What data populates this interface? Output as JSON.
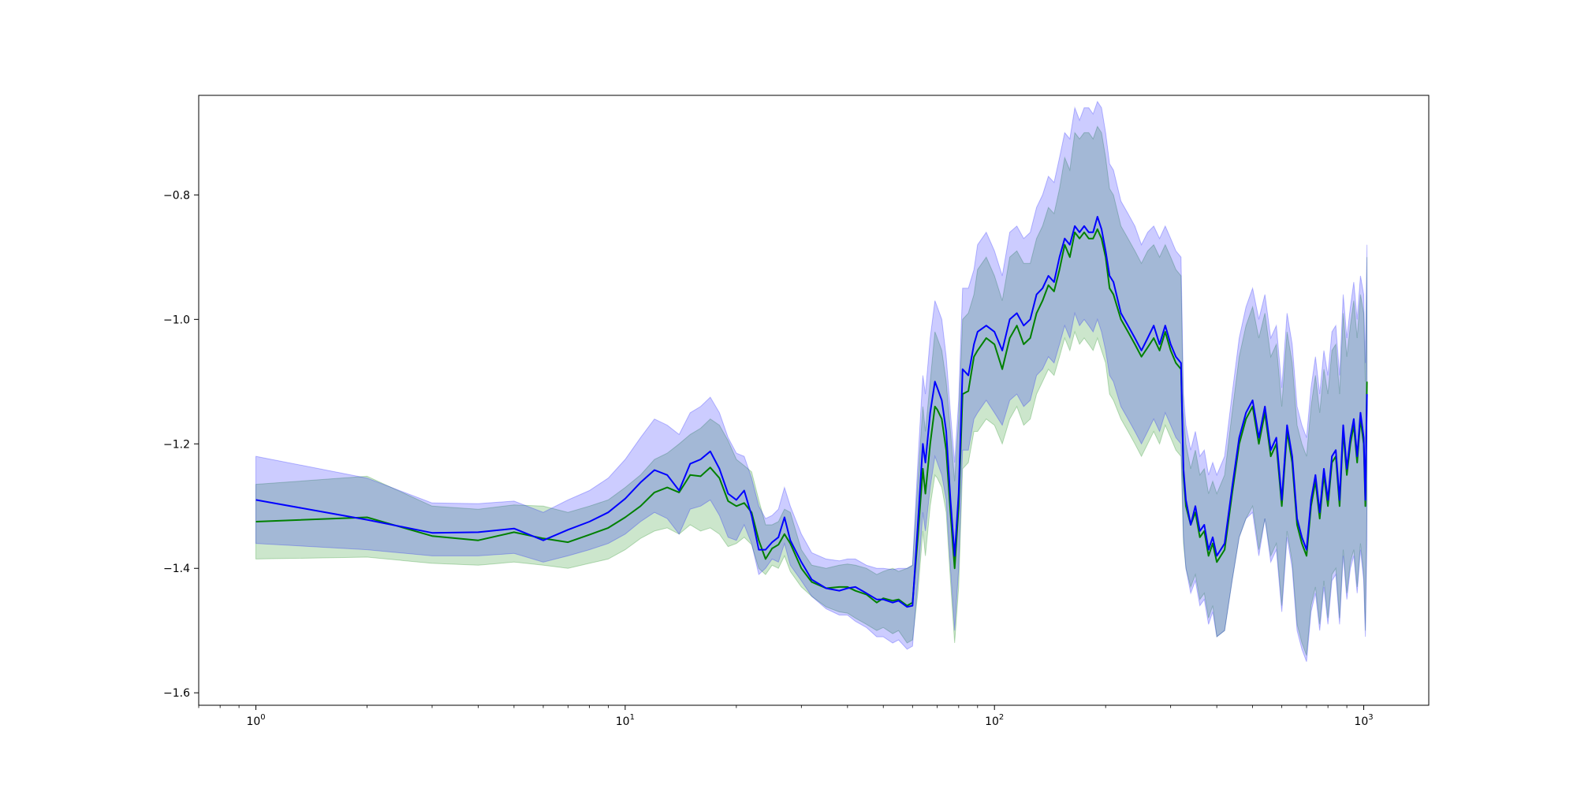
{
  "chart_data": {
    "type": "line",
    "title": "",
    "xlabel": "",
    "ylabel": "",
    "x_scale": "log",
    "xlim": [
      0.7,
      1500
    ],
    "ylim": [
      -1.62,
      -0.64
    ],
    "grid": false,
    "legend": "none",
    "x_ticks": [
      {
        "value": 1,
        "base": "10",
        "exp": "0"
      },
      {
        "value": 10,
        "base": "10",
        "exp": "1"
      },
      {
        "value": 100,
        "base": "10",
        "exp": "2"
      },
      {
        "value": 1000,
        "base": "10",
        "exp": "3"
      }
    ],
    "y_ticks": [
      {
        "value": -1.6,
        "label": "−1.6"
      },
      {
        "value": -1.4,
        "label": "−1.4"
      },
      {
        "value": -1.2,
        "label": "−1.2"
      },
      {
        "value": -1.0,
        "label": "−1.0"
      },
      {
        "value": -0.8,
        "label": "−0.8"
      }
    ],
    "series": [
      {
        "color": "#008000",
        "band_color": "#008000",
        "x": [
          1,
          2,
          3,
          4,
          5,
          6,
          7,
          8,
          9,
          10,
          11,
          12,
          13,
          14,
          15,
          16,
          17,
          18,
          19,
          20,
          21,
          22,
          23,
          24,
          25,
          26,
          27,
          28,
          30,
          32,
          35,
          38,
          40,
          42,
          45,
          48,
          50,
          53,
          55,
          58,
          60,
          62,
          64,
          65,
          67,
          69,
          70,
          72,
          74,
          76,
          78,
          80,
          82,
          85,
          88,
          90,
          95,
          100,
          105,
          110,
          115,
          120,
          125,
          130,
          135,
          140,
          145,
          150,
          155,
          160,
          165,
          170,
          175,
          180,
          185,
          190,
          195,
          200,
          205,
          210,
          220,
          230,
          240,
          250,
          260,
          270,
          280,
          290,
          300,
          310,
          320,
          325,
          330,
          340,
          350,
          360,
          370,
          380,
          390,
          400,
          420,
          440,
          460,
          480,
          500,
          520,
          540,
          560,
          580,
          600,
          620,
          640,
          660,
          680,
          700,
          720,
          740,
          760,
          780,
          800,
          820,
          840,
          860,
          880,
          900,
          920,
          940,
          960,
          980,
          1000,
          1010,
          1020
        ],
        "y": [
          -1.325,
          -1.318,
          -1.348,
          -1.355,
          -1.342,
          -1.352,
          -1.358,
          -1.346,
          -1.335,
          -1.318,
          -1.3,
          -1.278,
          -1.27,
          -1.278,
          -1.25,
          -1.252,
          -1.238,
          -1.255,
          -1.292,
          -1.3,
          -1.295,
          -1.31,
          -1.355,
          -1.385,
          -1.368,
          -1.362,
          -1.345,
          -1.36,
          -1.4,
          -1.422,
          -1.432,
          -1.43,
          -1.43,
          -1.436,
          -1.442,
          -1.455,
          -1.448,
          -1.452,
          -1.45,
          -1.46,
          -1.455,
          -1.35,
          -1.24,
          -1.28,
          -1.2,
          -1.14,
          -1.145,
          -1.16,
          -1.21,
          -1.31,
          -1.4,
          -1.3,
          -1.12,
          -1.115,
          -1.06,
          -1.05,
          -1.03,
          -1.04,
          -1.08,
          -1.03,
          -1.01,
          -1.04,
          -1.03,
          -0.99,
          -0.97,
          -0.945,
          -0.955,
          -0.92,
          -0.88,
          -0.9,
          -0.86,
          -0.87,
          -0.86,
          -0.87,
          -0.87,
          -0.855,
          -0.87,
          -0.9,
          -0.95,
          -0.96,
          -1.0,
          -1.02,
          -1.04,
          -1.06,
          -1.045,
          -1.03,
          -1.05,
          -1.02,
          -1.05,
          -1.07,
          -1.08,
          -1.25,
          -1.3,
          -1.33,
          -1.31,
          -1.35,
          -1.34,
          -1.38,
          -1.36,
          -1.39,
          -1.37,
          -1.28,
          -1.2,
          -1.16,
          -1.14,
          -1.2,
          -1.15,
          -1.22,
          -1.2,
          -1.3,
          -1.18,
          -1.23,
          -1.33,
          -1.36,
          -1.38,
          -1.3,
          -1.26,
          -1.32,
          -1.25,
          -1.3,
          -1.23,
          -1.22,
          -1.3,
          -1.18,
          -1.25,
          -1.2,
          -1.17,
          -1.23,
          -1.16,
          -1.2,
          -1.3,
          -1.1
        ],
        "upper": [
          -1.265,
          -1.252,
          -1.3,
          -1.305,
          -1.298,
          -1.3,
          -1.31,
          -1.3,
          -1.29,
          -1.27,
          -1.25,
          -1.225,
          -1.215,
          -1.2,
          -1.185,
          -1.175,
          -1.16,
          -1.17,
          -1.195,
          -1.225,
          -1.235,
          -1.245,
          -1.29,
          -1.33,
          -1.33,
          -1.325,
          -1.305,
          -1.31,
          -1.37,
          -1.395,
          -1.4,
          -1.395,
          -1.393,
          -1.395,
          -1.4,
          -1.41,
          -1.405,
          -1.4,
          -1.405,
          -1.4,
          -1.395,
          -1.26,
          -1.14,
          -1.18,
          -1.1,
          -1.02,
          -1.03,
          -1.05,
          -1.1,
          -1.18,
          -1.26,
          -1.16,
          -1.0,
          -0.99,
          -0.96,
          -0.92,
          -0.9,
          -0.93,
          -0.97,
          -0.9,
          -0.89,
          -0.91,
          -0.91,
          -0.87,
          -0.85,
          -0.82,
          -0.83,
          -0.79,
          -0.74,
          -0.76,
          -0.7,
          -0.71,
          -0.7,
          -0.7,
          -0.71,
          -0.69,
          -0.7,
          -0.74,
          -0.79,
          -0.8,
          -0.85,
          -0.87,
          -0.89,
          -0.91,
          -0.89,
          -0.88,
          -0.9,
          -0.88,
          -0.9,
          -0.92,
          -0.93,
          -1.15,
          -1.2,
          -1.24,
          -1.21,
          -1.25,
          -1.24,
          -1.28,
          -1.26,
          -1.28,
          -1.25,
          -1.15,
          -1.06,
          -1.01,
          -0.98,
          -1.03,
          -0.99,
          -1.06,
          -1.04,
          -1.14,
          -1.02,
          -1.07,
          -1.17,
          -1.2,
          -1.22,
          -1.14,
          -1.09,
          -1.15,
          -1.08,
          -1.12,
          -1.05,
          -1.04,
          -1.12,
          -0.99,
          -1.06,
          -1.01,
          -0.97,
          -1.03,
          -0.96,
          -0.99,
          -1.1,
          -0.9
        ],
        "lower": [
          -1.385,
          -1.382,
          -1.392,
          -1.395,
          -1.39,
          -1.395,
          -1.4,
          -1.392,
          -1.385,
          -1.37,
          -1.352,
          -1.34,
          -1.335,
          -1.345,
          -1.33,
          -1.34,
          -1.335,
          -1.345,
          -1.365,
          -1.36,
          -1.35,
          -1.362,
          -1.4,
          -1.41,
          -1.395,
          -1.4,
          -1.38,
          -1.405,
          -1.43,
          -1.445,
          -1.462,
          -1.47,
          -1.472,
          -1.48,
          -1.49,
          -1.5,
          -1.495,
          -1.505,
          -1.5,
          -1.52,
          -1.515,
          -1.44,
          -1.34,
          -1.38,
          -1.3,
          -1.25,
          -1.255,
          -1.27,
          -1.31,
          -1.42,
          -1.52,
          -1.43,
          -1.24,
          -1.23,
          -1.18,
          -1.18,
          -1.16,
          -1.17,
          -1.2,
          -1.16,
          -1.14,
          -1.17,
          -1.16,
          -1.12,
          -1.1,
          -1.08,
          -1.09,
          -1.06,
          -1.03,
          -1.05,
          -1.02,
          -1.04,
          -1.03,
          -1.04,
          -1.05,
          -1.03,
          -1.05,
          -1.07,
          -1.12,
          -1.13,
          -1.16,
          -1.18,
          -1.2,
          -1.22,
          -1.2,
          -1.18,
          -1.2,
          -1.17,
          -1.19,
          -1.21,
          -1.22,
          -1.36,
          -1.4,
          -1.43,
          -1.41,
          -1.45,
          -1.44,
          -1.48,
          -1.46,
          -1.51,
          -1.5,
          -1.42,
          -1.35,
          -1.32,
          -1.3,
          -1.37,
          -1.32,
          -1.38,
          -1.36,
          -1.46,
          -1.34,
          -1.39,
          -1.49,
          -1.52,
          -1.54,
          -1.46,
          -1.43,
          -1.49,
          -1.42,
          -1.48,
          -1.41,
          -1.4,
          -1.48,
          -1.37,
          -1.44,
          -1.39,
          -1.37,
          -1.43,
          -1.36,
          -1.41,
          -1.5,
          -1.3
        ]
      },
      {
        "color": "#0000ff",
        "band_color": "#0000ff",
        "x": [
          1,
          2,
          3,
          4,
          5,
          6,
          7,
          8,
          9,
          10,
          11,
          12,
          13,
          14,
          15,
          16,
          17,
          18,
          19,
          20,
          21,
          22,
          23,
          24,
          25,
          26,
          27,
          28,
          30,
          32,
          35,
          38,
          40,
          42,
          45,
          48,
          50,
          53,
          55,
          58,
          60,
          62,
          64,
          65,
          67,
          69,
          70,
          72,
          74,
          76,
          78,
          80,
          82,
          85,
          88,
          90,
          95,
          100,
          105,
          110,
          115,
          120,
          125,
          130,
          135,
          140,
          145,
          150,
          155,
          160,
          165,
          170,
          175,
          180,
          185,
          190,
          195,
          200,
          205,
          210,
          220,
          230,
          240,
          250,
          260,
          270,
          280,
          290,
          300,
          310,
          320,
          325,
          330,
          340,
          350,
          360,
          370,
          380,
          390,
          400,
          420,
          440,
          460,
          480,
          500,
          520,
          540,
          560,
          580,
          600,
          620,
          640,
          660,
          680,
          700,
          720,
          740,
          760,
          780,
          800,
          820,
          840,
          860,
          880,
          900,
          920,
          940,
          960,
          980,
          1000,
          1010,
          1020
        ],
        "y": [
          -1.29,
          -1.322,
          -1.343,
          -1.342,
          -1.336,
          -1.355,
          -1.338,
          -1.325,
          -1.31,
          -1.288,
          -1.262,
          -1.242,
          -1.25,
          -1.275,
          -1.232,
          -1.225,
          -1.212,
          -1.24,
          -1.28,
          -1.29,
          -1.275,
          -1.315,
          -1.37,
          -1.37,
          -1.358,
          -1.35,
          -1.318,
          -1.355,
          -1.39,
          -1.418,
          -1.432,
          -1.436,
          -1.432,
          -1.43,
          -1.44,
          -1.45,
          -1.45,
          -1.455,
          -1.452,
          -1.462,
          -1.46,
          -1.33,
          -1.2,
          -1.23,
          -1.15,
          -1.1,
          -1.11,
          -1.13,
          -1.18,
          -1.29,
          -1.38,
          -1.28,
          -1.08,
          -1.09,
          -1.04,
          -1.02,
          -1.01,
          -1.02,
          -1.05,
          -1.0,
          -0.99,
          -1.01,
          -1.0,
          -0.96,
          -0.95,
          -0.93,
          -0.94,
          -0.9,
          -0.87,
          -0.88,
          -0.85,
          -0.86,
          -0.85,
          -0.86,
          -0.86,
          -0.835,
          -0.855,
          -0.89,
          -0.93,
          -0.94,
          -0.99,
          -1.01,
          -1.03,
          -1.05,
          -1.03,
          -1.01,
          -1.04,
          -1.01,
          -1.04,
          -1.06,
          -1.07,
          -1.24,
          -1.29,
          -1.33,
          -1.3,
          -1.34,
          -1.33,
          -1.37,
          -1.35,
          -1.38,
          -1.36,
          -1.27,
          -1.19,
          -1.15,
          -1.13,
          -1.19,
          -1.14,
          -1.21,
          -1.19,
          -1.29,
          -1.17,
          -1.22,
          -1.32,
          -1.35,
          -1.37,
          -1.29,
          -1.25,
          -1.31,
          -1.24,
          -1.29,
          -1.22,
          -1.21,
          -1.29,
          -1.17,
          -1.24,
          -1.19,
          -1.16,
          -1.22,
          -1.15,
          -1.19,
          -1.29,
          -1.12
        ],
        "upper": [
          -1.22,
          -1.255,
          -1.295,
          -1.296,
          -1.292,
          -1.31,
          -1.29,
          -1.275,
          -1.255,
          -1.225,
          -1.19,
          -1.16,
          -1.17,
          -1.185,
          -1.15,
          -1.14,
          -1.125,
          -1.15,
          -1.19,
          -1.215,
          -1.22,
          -1.255,
          -1.3,
          -1.32,
          -1.315,
          -1.305,
          -1.27,
          -1.3,
          -1.345,
          -1.375,
          -1.385,
          -1.388,
          -1.385,
          -1.385,
          -1.395,
          -1.4,
          -1.4,
          -1.402,
          -1.4,
          -1.4,
          -1.395,
          -1.23,
          -1.09,
          -1.12,
          -1.03,
          -0.97,
          -0.98,
          -1.0,
          -1.06,
          -1.15,
          -1.23,
          -1.13,
          -0.95,
          -0.95,
          -0.92,
          -0.88,
          -0.86,
          -0.89,
          -0.93,
          -0.86,
          -0.85,
          -0.87,
          -0.86,
          -0.82,
          -0.8,
          -0.77,
          -0.78,
          -0.74,
          -0.7,
          -0.71,
          -0.66,
          -0.68,
          -0.66,
          -0.66,
          -0.67,
          -0.65,
          -0.66,
          -0.7,
          -0.75,
          -0.76,
          -0.81,
          -0.83,
          -0.85,
          -0.88,
          -0.86,
          -0.85,
          -0.87,
          -0.85,
          -0.87,
          -0.89,
          -0.9,
          -1.12,
          -1.17,
          -1.21,
          -1.18,
          -1.22,
          -1.21,
          -1.25,
          -1.23,
          -1.25,
          -1.22,
          -1.12,
          -1.03,
          -0.98,
          -0.95,
          -1.0,
          -0.96,
          -1.03,
          -1.01,
          -1.11,
          -0.99,
          -1.04,
          -1.14,
          -1.17,
          -1.19,
          -1.11,
          -1.06,
          -1.12,
          -1.05,
          -1.09,
          -1.02,
          -1.01,
          -1.09,
          -0.96,
          -1.03,
          -0.98,
          -0.94,
          -1.0,
          -0.93,
          -0.96,
          -1.07,
          -0.88
        ],
        "lower": [
          -1.36,
          -1.37,
          -1.38,
          -1.38,
          -1.376,
          -1.39,
          -1.38,
          -1.37,
          -1.36,
          -1.345,
          -1.325,
          -1.31,
          -1.32,
          -1.345,
          -1.305,
          -1.3,
          -1.29,
          -1.315,
          -1.35,
          -1.355,
          -1.33,
          -1.36,
          -1.41,
          -1.4,
          -1.385,
          -1.39,
          -1.36,
          -1.395,
          -1.42,
          -1.445,
          -1.465,
          -1.475,
          -1.475,
          -1.485,
          -1.495,
          -1.51,
          -1.51,
          -1.52,
          -1.515,
          -1.53,
          -1.525,
          -1.42,
          -1.31,
          -1.34,
          -1.27,
          -1.22,
          -1.23,
          -1.25,
          -1.29,
          -1.4,
          -1.5,
          -1.4,
          -1.21,
          -1.21,
          -1.16,
          -1.15,
          -1.13,
          -1.15,
          -1.17,
          -1.13,
          -1.12,
          -1.14,
          -1.13,
          -1.09,
          -1.08,
          -1.06,
          -1.07,
          -1.04,
          -1.01,
          -1.03,
          -0.99,
          -1.01,
          -1.0,
          -1.01,
          -1.02,
          -1.0,
          -1.02,
          -1.05,
          -1.09,
          -1.1,
          -1.14,
          -1.16,
          -1.18,
          -1.2,
          -1.18,
          -1.16,
          -1.18,
          -1.15,
          -1.17,
          -1.19,
          -1.2,
          -1.35,
          -1.4,
          -1.44,
          -1.42,
          -1.46,
          -1.45,
          -1.49,
          -1.47,
          -1.51,
          -1.5,
          -1.42,
          -1.35,
          -1.32,
          -1.31,
          -1.38,
          -1.32,
          -1.39,
          -1.37,
          -1.47,
          -1.35,
          -1.4,
          -1.5,
          -1.53,
          -1.55,
          -1.47,
          -1.44,
          -1.5,
          -1.43,
          -1.49,
          -1.42,
          -1.41,
          -1.49,
          -1.38,
          -1.45,
          -1.4,
          -1.38,
          -1.44,
          -1.37,
          -1.42,
          -1.51,
          -1.36
        ]
      }
    ]
  }
}
